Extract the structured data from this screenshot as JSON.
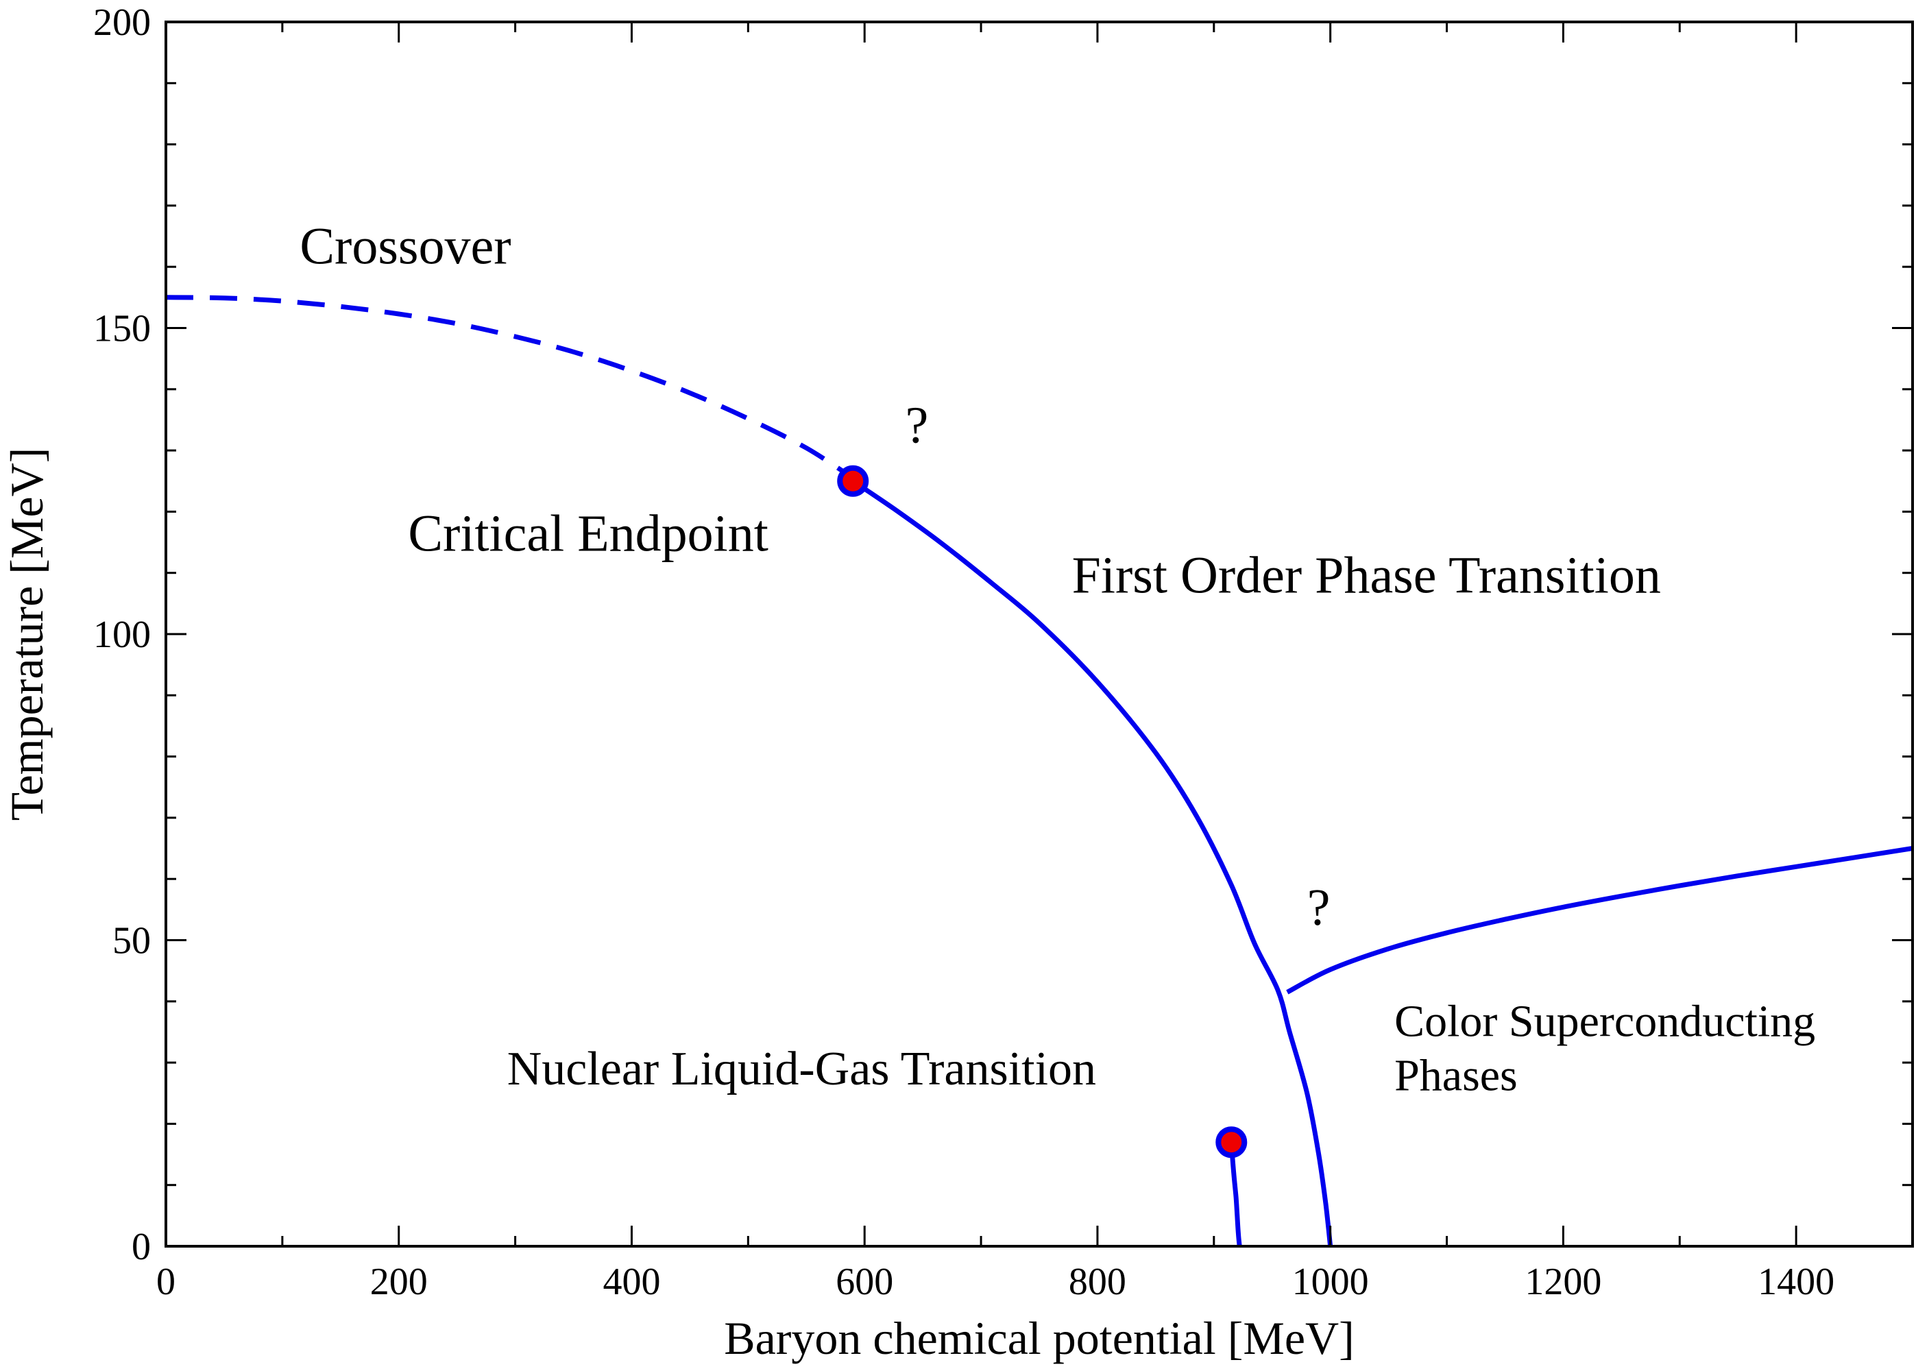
{
  "chart_data": {
    "type": "line",
    "title": "",
    "xlabel": "Baryon chemical potential [MeV]",
    "ylabel": "Temperature [MeV]",
    "xlim": [
      0,
      1500
    ],
    "ylim": [
      0,
      200
    ],
    "xticks": [
      0,
      200,
      400,
      600,
      800,
      1000,
      1200,
      1400
    ],
    "yticks": [
      0,
      50,
      100,
      150,
      200
    ],
    "x_minor_step": 100,
    "y_minor_step": 10,
    "grid": false,
    "colors": {
      "line": "#0000ee",
      "marker_fill": "#ee0000",
      "axis": "#000000"
    },
    "series": [
      {
        "name": "Crossover",
        "style": "dashed",
        "x": [
          0,
          50,
          100,
          150,
          200,
          250,
          300,
          350,
          400,
          450,
          500,
          550,
          590
        ],
        "y": [
          155,
          154.9,
          154.4,
          153.5,
          152.3,
          150.7,
          148.6,
          146.1,
          143.0,
          139.4,
          135.2,
          130.4,
          125.5
        ]
      },
      {
        "name": "First Order Phase Transition",
        "style": "solid",
        "x": [
          590,
          625,
          665,
          710,
          750,
          800,
          850,
          885,
          915,
          935,
          955,
          965,
          980,
          990,
          996,
          1000
        ],
        "y": [
          125,
          120.5,
          115,
          108.2,
          101.8,
          92.2,
          80.6,
          70.3,
          59,
          49.4,
          41.8,
          35,
          25,
          15,
          7,
          0
        ]
      },
      {
        "name": "Color Superconducting boundary",
        "style": "solid",
        "x": [
          963,
          1000,
          1050,
          1100,
          1150,
          1200,
          1250,
          1300,
          1350,
          1400,
          1450,
          1500
        ],
        "y": [
          41.5,
          45.2,
          48.6,
          51.2,
          53.4,
          55.4,
          57.2,
          58.9,
          60.5,
          62.0,
          63.5,
          65
        ]
      },
      {
        "name": "Nuclear Liquid-Gas Transition",
        "style": "solid",
        "x": [
          915,
          917,
          919,
          920,
          921,
          922
        ],
        "y": [
          17,
          12,
          8,
          5,
          2,
          0
        ]
      }
    ],
    "critical_points": [
      {
        "name": "Critical Endpoint",
        "x": 590,
        "y": 125
      },
      {
        "name": "Nuclear Liquid-Gas endpoint",
        "x": 915,
        "y": 17
      }
    ],
    "annotations": [
      {
        "id": "crossover",
        "text": "Crossover",
        "x": 115,
        "y": 160.5,
        "size": "lg"
      },
      {
        "id": "q1",
        "text": "?",
        "x": 635,
        "y": 131.3,
        "size": "lg"
      },
      {
        "id": "critical_endpoint",
        "text": "Critical Endpoint",
        "x": 208,
        "y": 113.6,
        "size": "lg"
      },
      {
        "id": "first_order",
        "text": "First Order Phase Transition",
        "x": 778,
        "y": 106.8,
        "size": "lg"
      },
      {
        "id": "q2",
        "text": "?",
        "x": 980,
        "y": 52.5,
        "size": "lg"
      },
      {
        "id": "color_sc_line1",
        "text": "Color Superconducting",
        "x": 1055,
        "y": 34.3,
        "size": "sm"
      },
      {
        "id": "color_sc_line2",
        "text": "Phases",
        "x": 1055,
        "y": 25.5,
        "size": "sm"
      },
      {
        "id": "nuclear_lg",
        "text": "Nuclear Liquid-Gas Transition",
        "x": 293,
        "y": 26.4,
        "size": "md"
      }
    ]
  }
}
